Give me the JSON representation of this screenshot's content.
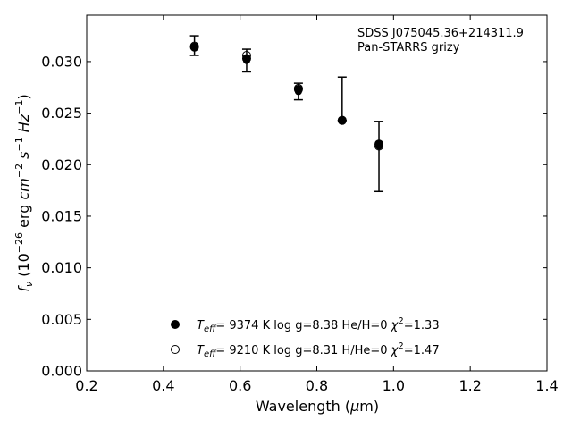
{
  "chart_data": {
    "type": "scatter",
    "xlabel": "Wavelength (μm)",
    "ylabel": "f_ν (10^{-26} erg cm^{-2} s^{-1} Hz^{-1})",
    "xlim": [
      0.2,
      1.4
    ],
    "ylim": [
      0.0,
      0.0345
    ],
    "xticks": [
      "0.2",
      "0.4",
      "0.6",
      "0.8",
      "1.0",
      "1.2",
      "1.4"
    ],
    "yticks": [
      "0.000",
      "0.005",
      "0.010",
      "0.015",
      "0.020",
      "0.025",
      "0.030"
    ],
    "grid": false,
    "annotations": [
      "SDSS J075045.36+214311.9",
      "Pan-STARRS grizy"
    ],
    "observed": {
      "x": [
        0.481,
        0.617,
        0.752,
        0.866,
        0.962
      ],
      "y": [
        0.0315,
        0.0301,
        0.0271,
        0.0243,
        0.0218
      ],
      "yerr_low": [
        0.0306,
        0.029,
        0.0263,
        0.0243,
        0.0174
      ],
      "yerr_high": [
        0.0325,
        0.0312,
        0.0279,
        0.0285,
        0.0242
      ]
    },
    "series": [
      {
        "marker": "filled-circle",
        "x": [
          0.481,
          0.617,
          0.752,
          0.866,
          0.962
        ],
        "y": [
          0.0314,
          0.0303,
          0.0273,
          0.0243,
          0.022
        ],
        "label_parts": {
          "teff": "9374 K",
          "logg": "log g=8.38",
          "comp": "He/H=0",
          "chi2": "=1.33"
        }
      },
      {
        "marker": "open-circle",
        "x": [
          0.481,
          0.617,
          0.752,
          0.866,
          0.962
        ],
        "y": [
          0.0315,
          0.0306,
          0.0274,
          0.0243,
          0.0218
        ],
        "label_parts": {
          "teff": "9210 K",
          "logg": "log g=8.31",
          "comp": "H/He=0",
          "chi2": "=1.47"
        }
      }
    ]
  }
}
